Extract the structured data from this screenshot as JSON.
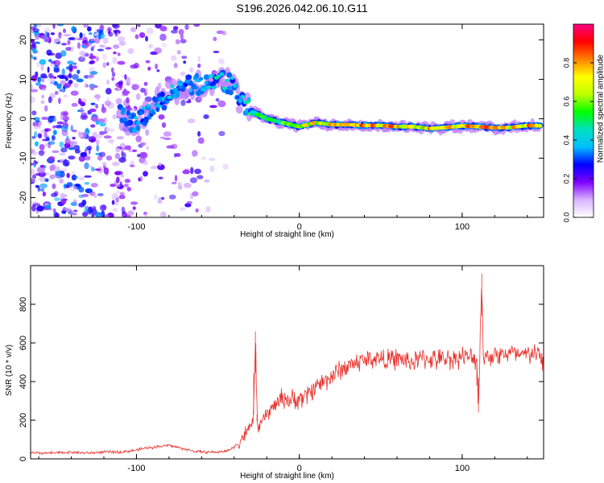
{
  "title": "S196.2026.042.06.10.G11",
  "chart_data": [
    {
      "type": "heatmap",
      "name": "spectrogram",
      "xlabel": "Height of straight line (km)",
      "ylabel": "Frequency (Hz)",
      "xlim": [
        -165,
        150
      ],
      "ylim": [
        -25,
        24
      ],
      "xticks": [
        -100,
        0,
        100
      ],
      "yticks": [
        -20,
        -10,
        0,
        10,
        20
      ],
      "colorbar": {
        "label": "Normalized spectral amplitude",
        "range": [
          0,
          1
        ],
        "ticks": [
          0.0,
          0.2,
          0.4,
          0.6,
          0.8
        ],
        "colors": [
          "#ffffff",
          "#d8b4fe",
          "#8000ff",
          "#0000ff",
          "#00bfff",
          "#00e0c0",
          "#00ff00",
          "#c0ff00",
          "#ffff00",
          "#ff8000",
          "#ff0000",
          "#ff0080"
        ]
      },
      "ridge": [
        {
          "x": -110,
          "f": 1,
          "a": 0.3
        },
        {
          "x": -100,
          "f": -1,
          "a": 0.4
        },
        {
          "x": -90,
          "f": 3,
          "a": 0.35
        },
        {
          "x": -80,
          "f": 6,
          "a": 0.4
        },
        {
          "x": -70,
          "f": 8,
          "a": 0.35
        },
        {
          "x": -60,
          "f": 9,
          "a": 0.4
        },
        {
          "x": -50,
          "f": 10,
          "a": 0.45
        },
        {
          "x": -42,
          "f": 9,
          "a": 0.4
        },
        {
          "x": -35,
          "f": 4,
          "a": 0.4
        },
        {
          "x": -30,
          "f": 2,
          "a": 0.5
        },
        {
          "x": -20,
          "f": 0,
          "a": 0.55
        },
        {
          "x": -10,
          "f": -1,
          "a": 0.6
        },
        {
          "x": 0,
          "f": -2,
          "a": 0.65
        },
        {
          "x": 10,
          "f": -1,
          "a": 0.75
        },
        {
          "x": 20,
          "f": -1.5,
          "a": 0.8
        },
        {
          "x": 30,
          "f": -1.5,
          "a": 0.85
        },
        {
          "x": 40,
          "f": -1.7,
          "a": 0.9
        },
        {
          "x": 50,
          "f": -1.7,
          "a": 0.85
        },
        {
          "x": 60,
          "f": -2,
          "a": 0.8
        },
        {
          "x": 70,
          "f": -2,
          "a": 0.75
        },
        {
          "x": 80,
          "f": -2.5,
          "a": 0.8
        },
        {
          "x": 90,
          "f": -2.2,
          "a": 0.75
        },
        {
          "x": 100,
          "f": -1.8,
          "a": 0.8
        },
        {
          "x": 110,
          "f": -2,
          "a": 0.85
        },
        {
          "x": 120,
          "f": -2.3,
          "a": 0.8
        },
        {
          "x": 130,
          "f": -2.2,
          "a": 0.75
        },
        {
          "x": 140,
          "f": -1.7,
          "a": 0.8
        },
        {
          "x": 148,
          "f": -1.8,
          "a": 0.85
        }
      ]
    },
    {
      "type": "line",
      "name": "snr",
      "xlabel": "Height of straight line (km)",
      "ylabel": "SNR (10 * v/v)",
      "xlim": [
        -165,
        150
      ],
      "ylim": [
        0,
        1000
      ],
      "xticks": [
        -100,
        0,
        100
      ],
      "yticks": [
        0,
        200,
        400,
        600,
        800
      ],
      "color": "#e8302a",
      "series": [
        {
          "name": "SNR",
          "x": [
            -165,
            -150,
            -140,
            -130,
            -120,
            -110,
            -100,
            -95,
            -90,
            -85,
            -80,
            -75,
            -70,
            -65,
            -60,
            -55,
            -50,
            -45,
            -40,
            -35,
            -30,
            -28,
            -27,
            -26,
            -25,
            -20,
            -15,
            -10,
            -5,
            0,
            5,
            10,
            15,
            20,
            25,
            30,
            35,
            40,
            45,
            50,
            55,
            60,
            65,
            70,
            75,
            80,
            85,
            90,
            95,
            100,
            105,
            109,
            110,
            112,
            113,
            115,
            120,
            125,
            130,
            135,
            140,
            145,
            150
          ],
          "values": [
            30,
            30,
            35,
            30,
            35,
            35,
            45,
            55,
            60,
            65,
            70,
            60,
            50,
            40,
            35,
            35,
            35,
            40,
            60,
            110,
            160,
            230,
            660,
            230,
            160,
            230,
            280,
            320,
            300,
            310,
            330,
            380,
            400,
            430,
            460,
            480,
            500,
            510,
            520,
            520,
            510,
            520,
            510,
            500,
            520,
            520,
            510,
            520,
            520,
            530,
            520,
            520,
            240,
            960,
            520,
            530,
            540,
            540,
            550,
            530,
            540,
            550,
            500
          ]
        }
      ]
    }
  ]
}
